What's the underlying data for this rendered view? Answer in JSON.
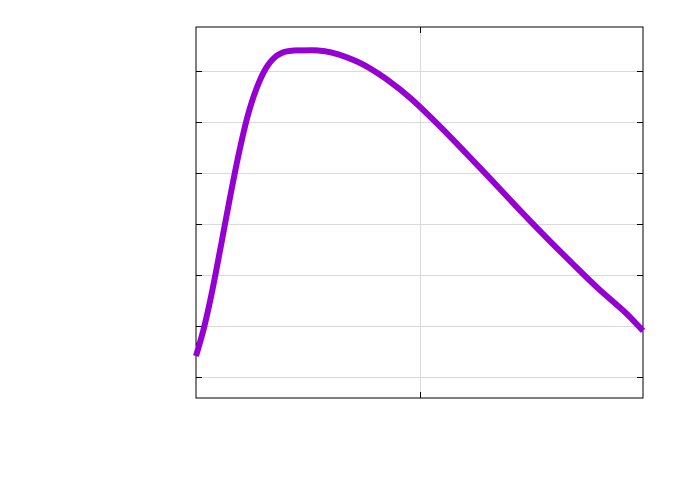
{
  "chart_data": {
    "type": "line",
    "title": "",
    "xlabel": "",
    "ylabel": "",
    "xlim": [
      0,
      1
    ],
    "ylim": [
      0,
      1
    ],
    "grid": true,
    "legend": "none",
    "x_ticks": [
      0,
      0.5,
      1
    ],
    "y_ticks": [
      0.057,
      0.194,
      0.332,
      0.469,
      0.606,
      0.744,
      0.881
    ],
    "series": [
      {
        "color": "#9400d3",
        "x": [
          0.0,
          0.018,
          0.036,
          0.056,
          0.076,
          0.096,
          0.116,
          0.136,
          0.156,
          0.176,
          0.196,
          0.214,
          0.226,
          0.246,
          0.27,
          0.3,
          0.338,
          0.38,
          0.43,
          0.48,
          0.54,
          0.6,
          0.66,
          0.72,
          0.78,
          0.84,
          0.9,
          0.96,
          1.0
        ],
        "y": [
          0.113,
          0.19,
          0.287,
          0.412,
          0.54,
          0.66,
          0.762,
          0.836,
          0.888,
          0.918,
          0.932,
          0.936,
          0.937,
          0.937,
          0.937,
          0.932,
          0.918,
          0.895,
          0.856,
          0.808,
          0.739,
          0.665,
          0.589,
          0.512,
          0.437,
          0.365,
          0.295,
          0.231,
          0.181
        ]
      }
    ]
  }
}
